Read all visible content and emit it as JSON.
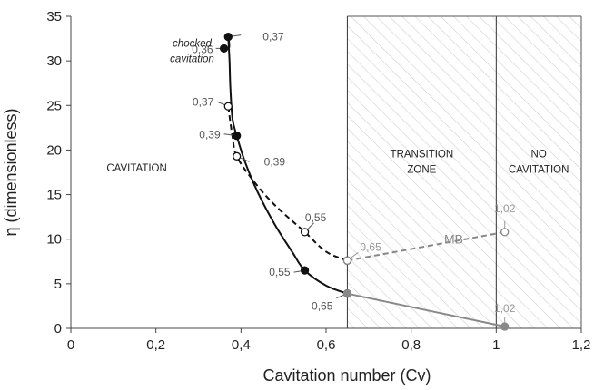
{
  "chart_data": {
    "type": "line",
    "xlabel": "Cavitation number (Cv)",
    "ylabel": "η (dimensionless)",
    "xlim": [
      0,
      1.2
    ],
    "ylim": [
      0,
      35
    ],
    "x_ticks": [
      0,
      0.2,
      0.4,
      0.6,
      0.8,
      1.0,
      1.2
    ],
    "x_tick_labels": [
      "0",
      "0,2",
      "0,4",
      "0,6",
      "0,8",
      "1",
      "1,2"
    ],
    "y_ticks": [
      0,
      5,
      10,
      15,
      20,
      25,
      30,
      35
    ],
    "y_tick_labels": [
      "0",
      "5",
      "10",
      "15",
      "20",
      "25",
      "30",
      "35"
    ],
    "grid": false,
    "series": [
      {
        "style": "solid",
        "color": "#111111",
        "marker": "filled",
        "points": [
          [
            0.36,
            31.4
          ],
          [
            0.37,
            32.7
          ],
          [
            0.39,
            21.6
          ],
          [
            0.55,
            6.5
          ],
          [
            0.65,
            3.9
          ]
        ],
        "curve": [
          [
            0.36,
            31.4
          ],
          [
            0.372,
            31.5
          ],
          [
            0.37,
            32.7
          ],
          [
            0.373,
            30
          ],
          [
            0.375,
            27
          ],
          [
            0.38,
            23.5
          ],
          [
            0.39,
            21.6
          ],
          [
            0.41,
            18.6
          ],
          [
            0.44,
            15.2
          ],
          [
            0.48,
            11.6
          ],
          [
            0.52,
            8.6
          ],
          [
            0.55,
            6.5
          ],
          [
            0.6,
            4.8
          ],
          [
            0.65,
            3.9
          ]
        ]
      },
      {
        "style": "dashed",
        "color": "#111111",
        "marker": "open",
        "points": [
          [
            0.37,
            24.9
          ],
          [
            0.39,
            19.3
          ],
          [
            0.55,
            10.8
          ],
          [
            0.65,
            7.6
          ]
        ],
        "curve": [
          [
            0.37,
            24.9
          ],
          [
            0.38,
            21.5
          ],
          [
            0.39,
            19.3
          ],
          [
            0.43,
            16.5
          ],
          [
            0.48,
            13.8
          ],
          [
            0.55,
            10.8
          ],
          [
            0.6,
            8.6
          ],
          [
            0.65,
            7.6
          ]
        ]
      },
      {
        "style": "dashed",
        "color": "#888888",
        "marker": "open",
        "points": [
          [
            0.65,
            7.6
          ],
          [
            1.02,
            10.8
          ]
        ],
        "curve": [
          [
            0.65,
            7.6
          ],
          [
            1.02,
            10.8
          ]
        ]
      },
      {
        "style": "solid",
        "color": "#888888",
        "marker": "filled",
        "points": [
          [
            0.65,
            3.9
          ],
          [
            1.02,
            0.2
          ]
        ],
        "curve": [
          [
            0.65,
            3.9
          ],
          [
            1.02,
            0.2
          ]
        ]
      }
    ],
    "regions": [
      {
        "label": "TRANSITION ZONE",
        "lines": [
          "TRANSITION",
          "ZONE"
        ],
        "x_from": 0.65,
        "x_to": 1.0
      },
      {
        "label": "NO CAVITATION",
        "lines": [
          "NO",
          "CAVITATION"
        ],
        "x_from": 1.0,
        "x_to": 1.2
      }
    ],
    "region_texts": [
      {
        "label": "CAVITATION",
        "x": 0.155,
        "y": 17.6
      },
      {
        "label": "chocked cavitation",
        "lines": [
          "chocked",
          "cavitation"
        ],
        "x": 0.285,
        "y": 31.6
      }
    ],
    "annotations": [
      {
        "text": "0,37",
        "x": 0.37,
        "y": 32.7,
        "color": "#555555"
      },
      {
        "text": "0,36",
        "x": 0.36,
        "y": 31.4,
        "color": "#555555"
      },
      {
        "text": "0,37",
        "x": 0.37,
        "y": 24.9,
        "color": "#555555"
      },
      {
        "text": "0,39",
        "x": 0.39,
        "y": 21.6,
        "color": "#555555"
      },
      {
        "text": "0,39",
        "x": 0.39,
        "y": 19.3,
        "color": "#555555"
      },
      {
        "text": "0,55",
        "x": 0.55,
        "y": 10.8,
        "color": "#555555"
      },
      {
        "text": "0,55",
        "x": 0.55,
        "y": 6.5,
        "color": "#555555"
      },
      {
        "text": "0,65",
        "x": 0.65,
        "y": 7.6,
        "color": "#999999"
      },
      {
        "text": "0,65",
        "x": 0.65,
        "y": 3.9,
        "color": "#555555"
      },
      {
        "text": "1,02",
        "x": 1.02,
        "y": 10.8,
        "color": "#999999"
      },
      {
        "text": "1,02",
        "x": 1.02,
        "y": 0.2,
        "color": "#999999"
      },
      {
        "text": "MB",
        "x": 0.9,
        "y": 9.5,
        "color": "#888888"
      }
    ]
  }
}
